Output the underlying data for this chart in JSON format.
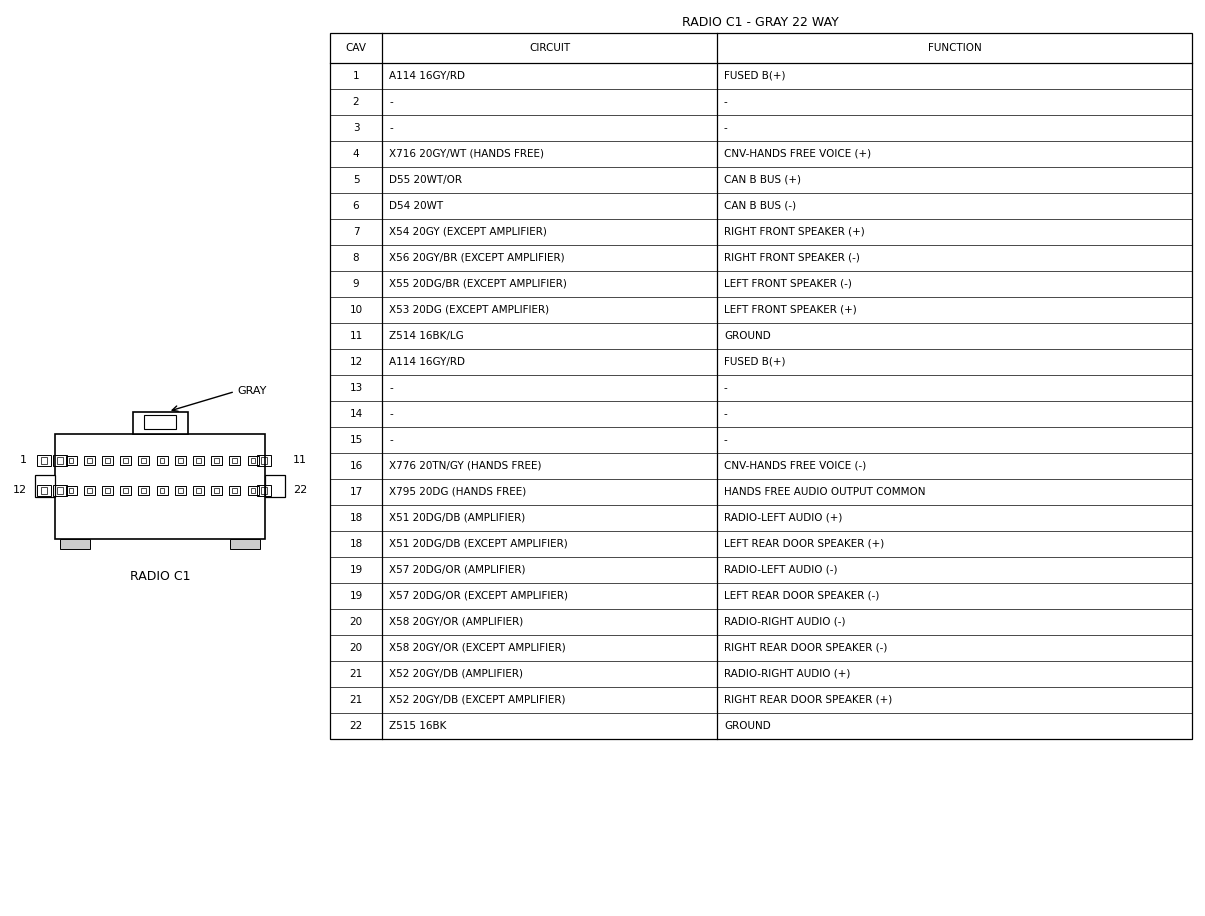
{
  "title": "RADIO C1 - GRAY 22 WAY",
  "table_title_col1": "CAV",
  "table_title_col2": "CIRCUIT",
  "table_title_col3": "FUNCTION",
  "rows": [
    [
      "1",
      "A114 16GY/RD",
      "FUSED B(+)"
    ],
    [
      "2",
      "-",
      "-"
    ],
    [
      "3",
      "-",
      "-"
    ],
    [
      "4",
      "X716 20GY/WT (HANDS FREE)",
      "CNV-HANDS FREE VOICE (+)"
    ],
    [
      "5",
      "D55 20WT/OR",
      "CAN B BUS (+)"
    ],
    [
      "6",
      "D54 20WT",
      "CAN B BUS (-)"
    ],
    [
      "7",
      "X54 20GY (EXCEPT AMPLIFIER)",
      "RIGHT FRONT SPEAKER (+)"
    ],
    [
      "8",
      "X56 20GY/BR (EXCEPT AMPLIFIER)",
      "RIGHT FRONT SPEAKER (-)"
    ],
    [
      "9",
      "X55 20DG/BR (EXCEPT AMPLIFIER)",
      "LEFT FRONT SPEAKER (-)"
    ],
    [
      "10",
      "X53 20DG (EXCEPT AMPLIFIER)",
      "LEFT FRONT SPEAKER (+)"
    ],
    [
      "11",
      "Z514 16BK/LG",
      "GROUND"
    ],
    [
      "12",
      "A114 16GY/RD",
      "FUSED B(+)"
    ],
    [
      "13",
      "-",
      "-"
    ],
    [
      "14",
      "-",
      "-"
    ],
    [
      "15",
      "-",
      "-"
    ],
    [
      "16",
      "X776 20TN/GY (HANDS FREE)",
      "CNV-HANDS FREE VOICE (-)"
    ],
    [
      "17",
      "X795 20DG (HANDS FREE)",
      "HANDS FREE AUDIO OUTPUT COMMON"
    ],
    [
      "18",
      "X51 20DG/DB (AMPLIFIER)",
      "RADIO-LEFT AUDIO (+)"
    ],
    [
      "18",
      "X51 20DG/DB (EXCEPT AMPLIFIER)",
      "LEFT REAR DOOR SPEAKER (+)"
    ],
    [
      "19",
      "X57 20DG/OR (AMPLIFIER)",
      "RADIO-LEFT AUDIO (-)"
    ],
    [
      "19",
      "X57 20DG/OR (EXCEPT AMPLIFIER)",
      "LEFT REAR DOOR SPEAKER (-)"
    ],
    [
      "20",
      "X58 20GY/OR (AMPLIFIER)",
      "RADIO-RIGHT AUDIO (-)"
    ],
    [
      "20",
      "X58 20GY/OR (EXCEPT AMPLIFIER)",
      "RIGHT REAR DOOR SPEAKER (-)"
    ],
    [
      "21",
      "X52 20GY/DB (AMPLIFIER)",
      "RADIO-RIGHT AUDIO (+)"
    ],
    [
      "21",
      "X52 20GY/DB (EXCEPT AMPLIFIER)",
      "RIGHT REAR DOOR SPEAKER (+)"
    ],
    [
      "22",
      "Z515 16BK",
      "GROUND"
    ]
  ],
  "connector_label": "RADIO C1",
  "gray_label": "GRAY",
  "bg_color": "#ffffff",
  "border_color": "#000000",
  "text_color": "#000000",
  "font_size_title": 9,
  "font_size_table": 7.5,
  "font_size_connector": 8
}
